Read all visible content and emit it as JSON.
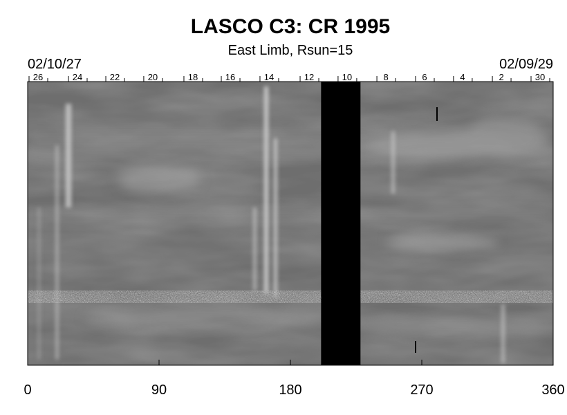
{
  "chart_data": {
    "type": "image",
    "title": "LASCO C3: CR 1995",
    "subtitle": "East Limb, Rsun=15",
    "left_date": "02/10/27",
    "right_date": "02/09/29",
    "xlim": [
      0,
      360
    ],
    "xticks": [
      0,
      90,
      180,
      270,
      360
    ],
    "top_ticks": [
      {
        "value": 7.1,
        "label": "26"
      },
      {
        "value": 34.1,
        "label": "24"
      },
      {
        "value": 59.7,
        "label": "22"
      },
      {
        "value": 85.7,
        "label": "20"
      },
      {
        "value": 113.2,
        "label": "18"
      },
      {
        "value": 138.8,
        "label": "16"
      },
      {
        "value": 165.3,
        "label": "14"
      },
      {
        "value": 192.8,
        "label": "12"
      },
      {
        "value": 218.8,
        "label": "10"
      },
      {
        "value": 245.4,
        "label": "8"
      },
      {
        "value": 271.9,
        "label": "6"
      },
      {
        "value": 297.9,
        "label": "4"
      },
      {
        "value": 324.5,
        "label": "2"
      },
      {
        "value": 351.0,
        "label": "30"
      }
    ],
    "gap": [
      201,
      228
    ]
  }
}
